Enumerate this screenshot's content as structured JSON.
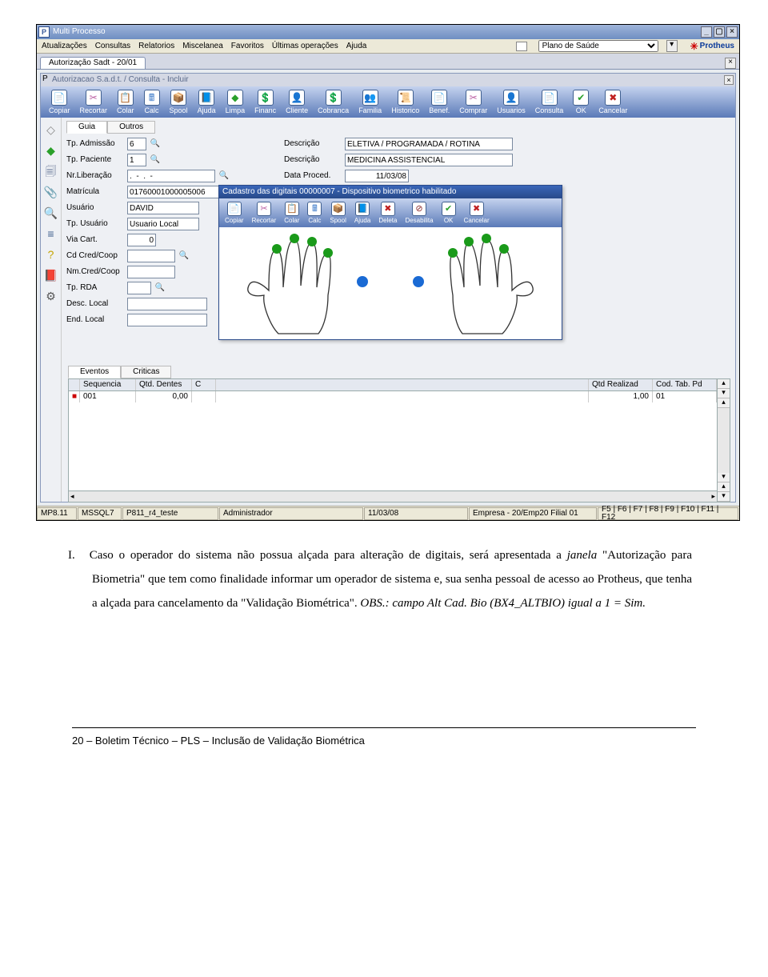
{
  "window": {
    "title": "Multi Processo",
    "menus": [
      "Atualizações",
      "Consultas",
      "Relatorios",
      "Miscelanea",
      "Favoritos",
      "Últimas operações",
      "Ajuda"
    ],
    "combo_value": "Plano de Saúde",
    "brand": "Protheus",
    "tab_label": "Autorização Sadt - 20/01"
  },
  "subwindow": {
    "title": "Autorizacao S.a.d.t. / Consulta - Incluir"
  },
  "toolbar_main": [
    "Copiar",
    "Recortar",
    "Colar",
    "Calc",
    "Spool",
    "Ajuda",
    "Limpa",
    "Financ",
    "Cliente",
    "Cobranca",
    "Familia",
    "Historico",
    "Benef.",
    "Comprar",
    "Usuarios",
    "Consulta",
    "OK",
    "Cancelar"
  ],
  "toolbar_icons": [
    "📄",
    "✂",
    "📋",
    "🖩",
    "📦",
    "📘",
    "◆",
    "💲",
    "👤",
    "💲",
    "👥",
    "📜",
    "📄",
    "✂",
    "👤",
    "📄",
    "✔",
    "✖"
  ],
  "toolbar_colors": [
    "#3a78c8",
    "#b85aa0",
    "#3a78c8",
    "#3a78c8",
    "#6b6b6b",
    "#2a78c8",
    "#2aa02a",
    "#2aa02a",
    "#c49a00",
    "#2aa02a",
    "#c49a00",
    "#2a78c8",
    "#3a78c8",
    "#b85aa0",
    "#c49a00",
    "#3a78c8",
    "#2aa02a",
    "#c02020"
  ],
  "left_icons": [
    "◇",
    "◆",
    "🗐",
    "📎",
    "🔍",
    "≡",
    "?",
    "📕",
    "⚙"
  ],
  "left_colors": [
    "#888",
    "#2aa02a",
    "#6a7a9a",
    "#6a7a9a",
    "#2a78c8",
    "#3a5a8a",
    "#c4a400",
    "#c02020",
    "#555"
  ],
  "form_tabs": [
    "Guia",
    "Outros"
  ],
  "form": {
    "tp_admissao_label": "Tp. Admissão",
    "tp_admissao": "6",
    "tp_paciente_label": "Tp. Paciente",
    "tp_paciente": "1",
    "nr_liberacao_label": "Nr.Liberação",
    "nr_liberacao": ".  -  .  -",
    "matricula_label": "Matrícula",
    "matricula": "01760001000005006",
    "usuario_label": "Usuário",
    "usuario": "DAVID",
    "tp_usuario_label": "Tp. Usuário",
    "tp_usuario": "Usuario Local",
    "via_cart_label": "Via Cart.",
    "via_cart": "0",
    "cd_cred_label": "Cd Cred/Coop",
    "cd_cred": "",
    "nm_cred_label": "Nm.Cred/Coop",
    "nm_cred": "",
    "tp_rda_label": "Tp. RDA",
    "tp_rda": "",
    "desc_local_label": "Desc. Local",
    "desc_local": "",
    "end_local_label": "End. Local",
    "end_local": "",
    "descricao_label": "Descrição",
    "descricao1": "ELETIVA / PROGRAMADA / ROTINA",
    "descricao2": "MEDICINA ASSISTENCIAL",
    "data_proced_label": "Data Proced.",
    "data_proced": "11/03/08"
  },
  "bio": {
    "title": "Cadastro das digitais 00000007 - Dispositivo biometrico habilitado",
    "toolbar": [
      "Copiar",
      "Recortar",
      "Colar",
      "Calc",
      "Spool",
      "Ajuda",
      "Deleta",
      "Desabilita",
      "OK",
      "Cancelar"
    ],
    "toolbar_icons": [
      "📄",
      "✂",
      "📋",
      "🖩",
      "📦",
      "📘",
      "✖",
      "⊘",
      "✔",
      "✖"
    ],
    "toolbar_colors": [
      "#3a78c8",
      "#b85aa0",
      "#3a78c8",
      "#3a78c8",
      "#6b6b6b",
      "#2a78c8",
      "#c02020",
      "#8a2a2a",
      "#2aa02a",
      "#c02020"
    ],
    "dot_green": "#1a9a1a",
    "dot_blue": "#1a6ad4",
    "hand_stroke": "#333333"
  },
  "events": {
    "tabs": [
      "Eventos",
      "Criticas"
    ],
    "headers": [
      "Sequencia",
      "Qtd. Dentes",
      "C"
    ],
    "headers_right": [
      "Qtd Realizad",
      "Cod. Tab. Pd"
    ],
    "row": {
      "seq": "001",
      "qtd": "0,00",
      "c": "",
      "qtdr": "1,00",
      "cod": "01"
    }
  },
  "status": {
    "c1": "MP8.11",
    "c2": "MSSQL7",
    "c3": "P811_r4_teste",
    "c4": "Administrador",
    "c5": "11/03/08",
    "c6": "Empresa - 20/Emp20 Filial 01",
    "c7": "F5 | F6 | F7 | F8 | F9 | F10 | F11 | F12"
  },
  "doc": {
    "marker": "I.",
    "para": "Caso o operador do sistema não possua alçada para alteração de digitais, será apresentada a janela \"Autorização para Biometria\" que tem como finalidade informar um operador de sistema e, sua senha pessoal de acesso ao Protheus, que tenha a alçada para cancelamento da \"Validação Biométrica\". OBS.: campo Alt Cad. Bio (BX4_ALTBIO) igual a 1 = Sim.",
    "footer": "20 – Boletim Técnico – PLS – Inclusão de Validação Biométrica"
  }
}
